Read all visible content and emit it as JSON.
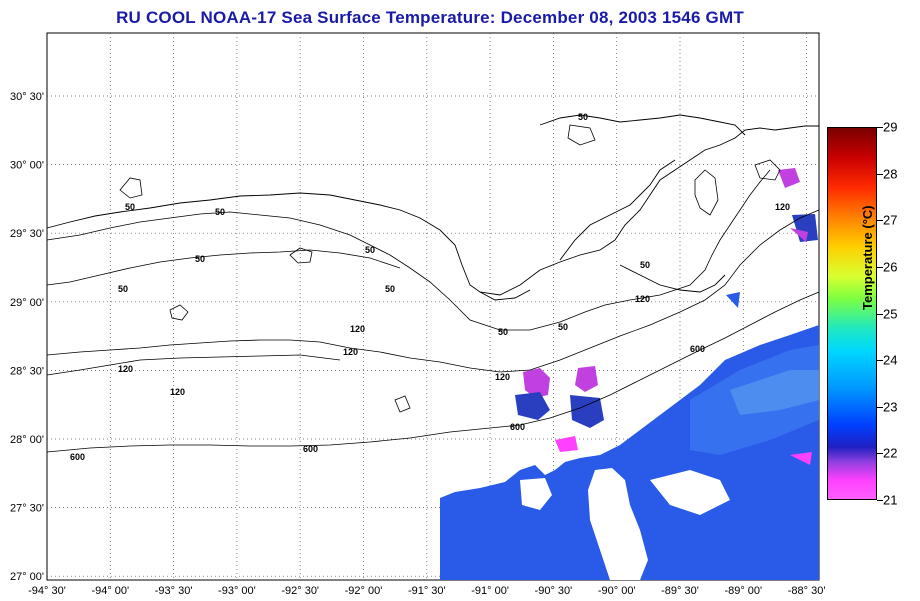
{
  "title": "RU COOL  NOAA-17  Sea Surface Temperature:  December 08, 2003 1546 GMT",
  "x_ticks": [
    "-94° 30'",
    "-94° 00'",
    "-93° 30'",
    "-93° 00'",
    "-92° 30'",
    "-92° 00'",
    "-91° 30'",
    "-91° 00'",
    "-90° 30'",
    "-90° 00'",
    "-89° 30'",
    "-89° 00'",
    "-88° 30'"
  ],
  "y_ticks": [
    "30° 30'",
    "30° 00'",
    "29° 30'",
    "29° 00'",
    "28° 30'",
    "28° 00'",
    "27° 30'",
    "27° 00'"
  ],
  "contour_labels": [
    "50",
    "50",
    "50",
    "50",
    "50",
    "50",
    "50",
    "50",
    "50",
    "50",
    "120",
    "120",
    "120",
    "120",
    "120",
    "120",
    "120",
    "600",
    "600",
    "600",
    "600"
  ],
  "colorbar": {
    "title": "Temperature (°C)",
    "labels": [
      "29",
      "28",
      "27",
      "26",
      "25",
      "24",
      "23",
      "22",
      "21"
    ],
    "min": 21,
    "max": 29
  },
  "colors": {
    "title": "#1a1aa8",
    "sst_main": "#2a5ae8",
    "sst_cool": "#c040e0"
  }
}
